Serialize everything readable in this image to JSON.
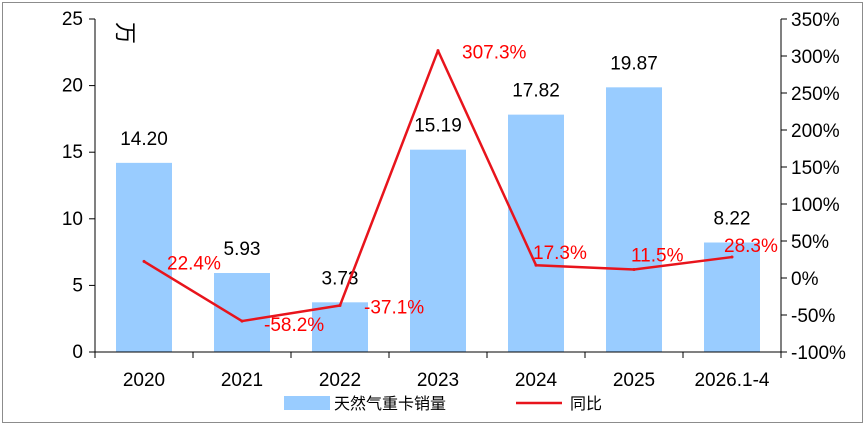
{
  "chart_data": {
    "type": "bar",
    "categories": [
      "2020",
      "2021",
      "2022",
      "2023",
      "2024",
      "2025",
      "2026.1-4"
    ],
    "series": [
      {
        "name": "天然气重卡销量",
        "kind": "bar",
        "axis": "left",
        "color": "#99ccff",
        "values": [
          14.2,
          5.93,
          3.73,
          15.19,
          17.82,
          19.87,
          8.22
        ],
        "labels": [
          "14.20",
          "5.93",
          "3.73",
          "15.19",
          "17.82",
          "19.87",
          "8.22"
        ]
      },
      {
        "name": "同比",
        "kind": "line",
        "axis": "right",
        "color": "#e8141c",
        "values": [
          22.4,
          -58.2,
          -37.1,
          307.3,
          17.3,
          11.5,
          28.3
        ],
        "labels": [
          "22.4%",
          "-58.2%",
          "-37.1%",
          "307.3%",
          "17.3%",
          "11.5%",
          "28.3%"
        ]
      }
    ],
    "y_left": {
      "unit_label": "万",
      "range": [
        0,
        25
      ],
      "ticks": [
        "0",
        "5",
        "10",
        "15",
        "20",
        "25"
      ]
    },
    "y_right": {
      "range": [
        -100,
        350
      ],
      "ticks": [
        "-100%",
        "-50%",
        "0%",
        "50%",
        "100%",
        "150%",
        "200%",
        "250%",
        "300%",
        "350%"
      ]
    },
    "grid": false,
    "legend_position": "bottom-center"
  }
}
